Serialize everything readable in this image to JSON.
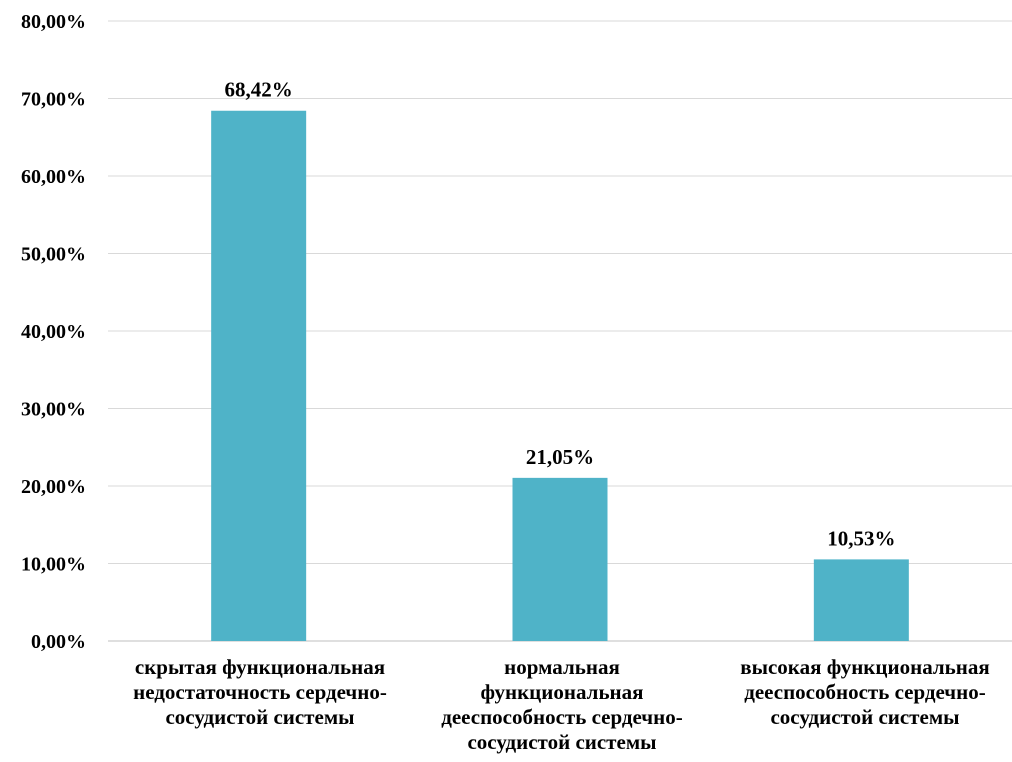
{
  "chart_data": {
    "type": "bar",
    "categories": [
      "скрытая функциональная\nнедостаточность сердечно-\nсосудистой системы",
      "нормальная\nфункциональная\nдееспособность сердечно-\nсосудистой системы",
      "высокая функциональная\nдееспособность сердечно-\nсосудистой системы"
    ],
    "values": [
      68.42,
      21.05,
      10.53
    ],
    "data_labels": [
      "68,42%",
      "21,05%",
      "10,53%"
    ],
    "ylim": [
      0,
      80
    ],
    "yticks": [
      0,
      10,
      20,
      30,
      40,
      50,
      60,
      70,
      80
    ],
    "ytick_labels": [
      "0,00%",
      "10,00%",
      "20,00%",
      "30,00%",
      "40,00%",
      "50,00%",
      "60,00%",
      "70,00%",
      "80,00%"
    ],
    "title": "",
    "xlabel": "",
    "ylabel": "",
    "grid": true,
    "legend": "none",
    "colors": {
      "bar": "#4fb3c8",
      "grid": "#d9d9d9",
      "axis": "#bfbfbf",
      "text": "#000000"
    }
  }
}
